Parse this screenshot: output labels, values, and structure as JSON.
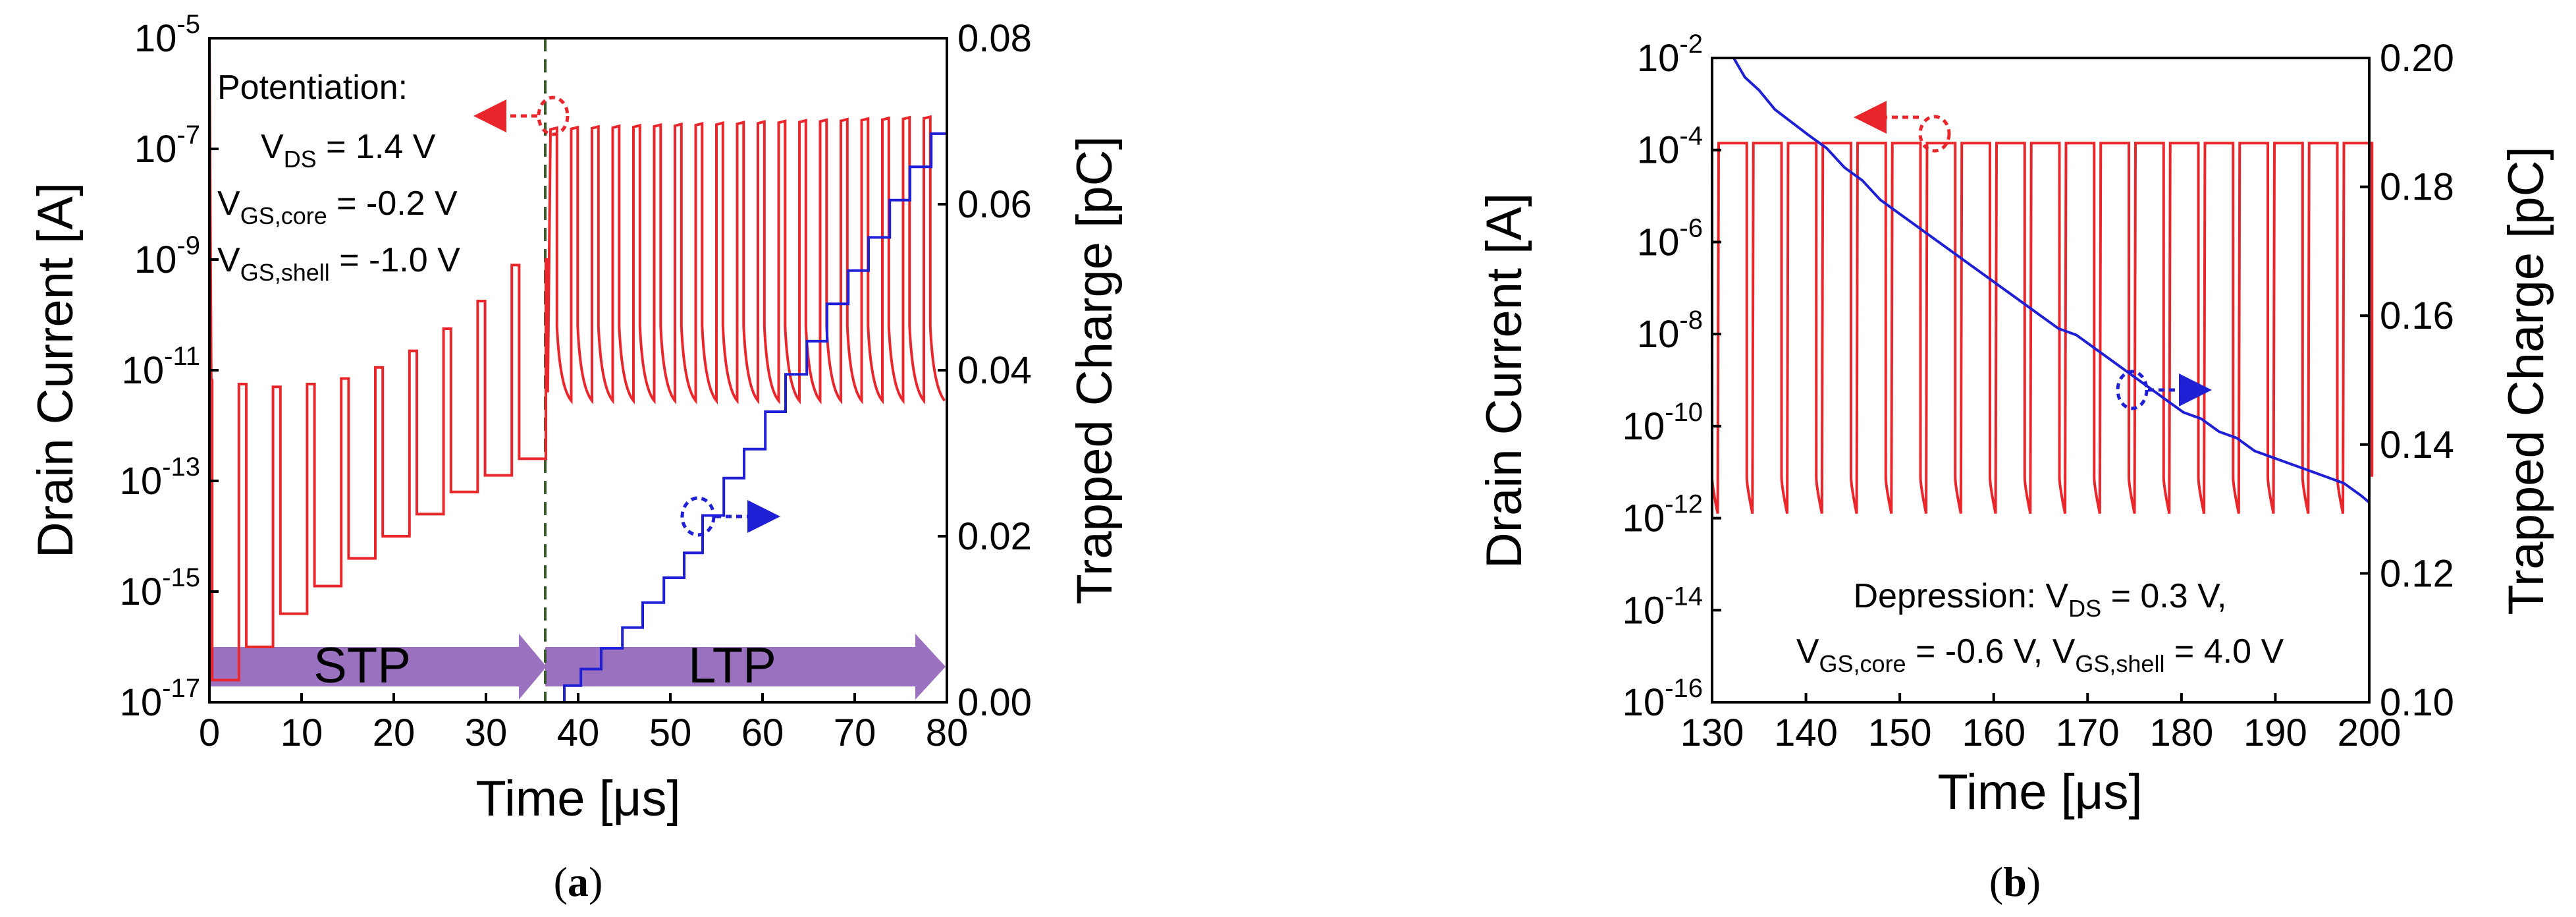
{
  "figure": {
    "panel_labels": [
      {
        "open": "(",
        "letter": "a",
        "close": ")"
      },
      {
        "open": "(",
        "letter": "b",
        "close": ")"
      }
    ]
  },
  "chart_data": [
    {
      "id": "a",
      "type": "line",
      "xlabel": "Time [μs]",
      "ylabel_left": "Drain Current [A]",
      "ylabel_right": "Trapped Charge [pC]",
      "xlim": [
        0,
        80
      ],
      "xticks": [
        "0",
        "10",
        "20",
        "30",
        "40",
        "50",
        "60",
        "70",
        "80"
      ],
      "left_log_exponents": [
        -17,
        -15,
        -13,
        -11,
        -9,
        -7,
        -5
      ],
      "ylim_left_log": [
        -17,
        -5
      ],
      "ylim_right": [
        0,
        0.08
      ],
      "right_ticks": [
        "0.00",
        "0.02",
        "0.04",
        "0.06",
        "0.08"
      ],
      "annotation": {
        "title": "Potentiation:",
        "lines": [
          {
            "main": "V",
            "sub": "DS",
            "rest": " = 1.4 V"
          },
          {
            "main": "V",
            "sub": "GS,core",
            "rest": " = -0.2 V"
          },
          {
            "main": "V",
            "sub": "GS,shell",
            "rest": " = -1.0 V"
          }
        ]
      },
      "regions": [
        {
          "label": "STP",
          "x_start": 0,
          "x_end": 37
        },
        {
          "label": "LTP",
          "x_start": 37,
          "x_end": 80
        }
      ],
      "divider_x": 37,
      "series": [
        {
          "name": "Drain Current",
          "axis": "left",
          "color": "#e8262b",
          "pulses": [
            {
              "t0": 0,
              "hi": -11.18,
              "lo": -16.6
            },
            {
              "t0": 3.7,
              "hi": -11.25,
              "lo": -16.0
            },
            {
              "t0": 7.4,
              "hi": -11.3,
              "lo": -15.4
            },
            {
              "t0": 11.1,
              "hi": -11.25,
              "lo": -14.9
            },
            {
              "t0": 14.8,
              "hi": -11.15,
              "lo": -14.4
            },
            {
              "t0": 18.5,
              "hi": -10.95,
              "lo": -14.0
            },
            {
              "t0": 22.2,
              "hi": -10.65,
              "lo": -13.6
            },
            {
              "t0": 25.9,
              "hi": -10.25,
              "lo": -13.2
            },
            {
              "t0": 29.6,
              "hi": -9.75,
              "lo": -12.9
            },
            {
              "t0": 33.3,
              "hi": -9.1,
              "lo": -12.6
            }
          ],
          "ltp_pulses": {
            "t_start": 37,
            "period": 2.25,
            "hi_start": -11.55,
            "hi_end": -11.55,
            "top_start": -6.65,
            "top_end": -6.45,
            "count": 19
          }
        },
        {
          "name": "Trapped Charge",
          "axis": "right",
          "color": "#1f1fd6",
          "steps": [
            [
              37,
              0.0
            ],
            [
              38.5,
              0.0
            ],
            [
              38.5,
              0.002
            ],
            [
              40.3,
              0.002
            ],
            [
              40.3,
              0.004
            ],
            [
              42.5,
              0.004
            ],
            [
              42.5,
              0.0065
            ],
            [
              44.8,
              0.0065
            ],
            [
              44.8,
              0.009
            ],
            [
              47,
              0.009
            ],
            [
              47,
              0.012
            ],
            [
              49.3,
              0.012
            ],
            [
              49.3,
              0.015
            ],
            [
              51.5,
              0.015
            ],
            [
              51.5,
              0.018
            ],
            [
              53.5,
              0.018
            ],
            [
              53.5,
              0.0225
            ],
            [
              55.8,
              0.0225
            ],
            [
              55.8,
              0.027
            ],
            [
              58,
              0.027
            ],
            [
              58,
              0.0305
            ],
            [
              60.3,
              0.0305
            ],
            [
              60.3,
              0.035
            ],
            [
              62.5,
              0.035
            ],
            [
              62.5,
              0.0395
            ],
            [
              64.8,
              0.0395
            ],
            [
              64.8,
              0.0435
            ],
            [
              67,
              0.0435
            ],
            [
              67,
              0.048
            ],
            [
              69.3,
              0.048
            ],
            [
              69.3,
              0.052
            ],
            [
              71.5,
              0.052
            ],
            [
              71.5,
              0.056
            ],
            [
              73.8,
              0.056
            ],
            [
              73.8,
              0.0605
            ],
            [
              76,
              0.0605
            ],
            [
              76,
              0.0645
            ],
            [
              78.3,
              0.0645
            ],
            [
              78.3,
              0.0685
            ],
            [
              80,
              0.0685
            ]
          ]
        }
      ]
    },
    {
      "id": "b",
      "type": "line",
      "xlabel": "Time [μs]",
      "ylabel_left": "Drain Current [A]",
      "ylabel_right": "Trapped Charge [pC]",
      "xlim": [
        130,
        200
      ],
      "xticks": [
        "130",
        "140",
        "150",
        "160",
        "170",
        "180",
        "190",
        "200"
      ],
      "left_log_exponents": [
        -16,
        -14,
        -12,
        -10,
        -8,
        -6,
        -4,
        -2
      ],
      "ylim_left_log": [
        -16,
        -2
      ],
      "ylim_right": [
        0.1,
        0.2
      ],
      "right_ticks": [
        "0.10",
        "0.12",
        "0.14",
        "0.16",
        "0.18",
        "0.20"
      ],
      "annotation": {
        "line1": {
          "pre": "Depression: V",
          "sub": "DS",
          "rest": " = 0.3 V,"
        },
        "line2": [
          {
            "main": "V",
            "sub": "GS,core",
            "rest": " = -0.6 V, "
          },
          {
            "main": "V",
            "sub": "GS,shell",
            "rest": " = 4.0 V"
          }
        ]
      },
      "series": [
        {
          "name": "Drain Current",
          "axis": "left",
          "color": "#e8262b",
          "pulse_train": {
            "t_start": 130,
            "period": 3.7,
            "count": 19,
            "hi": -3.85,
            "lo": -11.1,
            "lo_low": -11.9
          }
        },
        {
          "name": "Trapped Charge",
          "axis": "right",
          "color": "#1f1fd6",
          "x": [
            132.3,
            133.5,
            135,
            136.7,
            138.5,
            140.3,
            142.2,
            144.1,
            146,
            147.9,
            149.8,
            151.7,
            153.6,
            155.5,
            157.4,
            159.3,
            161.2,
            163.1,
            165,
            166.9,
            168.8,
            170.7,
            172.6,
            174.5,
            176.4,
            178.3,
            180.2,
            182.1,
            184,
            185.9,
            187.8,
            189.7,
            191.6,
            193.5,
            195.4,
            197.3,
            199.2,
            200
          ],
          "y": [
            0.2,
            0.197,
            0.195,
            0.192,
            0.19,
            0.188,
            0.186,
            0.183,
            0.181,
            0.178,
            0.176,
            0.174,
            0.172,
            0.17,
            0.168,
            0.166,
            0.164,
            0.162,
            0.16,
            0.158,
            0.157,
            0.155,
            0.153,
            0.151,
            0.149,
            0.147,
            0.145,
            0.144,
            0.142,
            0.141,
            0.139,
            0.138,
            0.137,
            0.136,
            0.135,
            0.134,
            0.132,
            0.131
          ]
        }
      ]
    }
  ]
}
